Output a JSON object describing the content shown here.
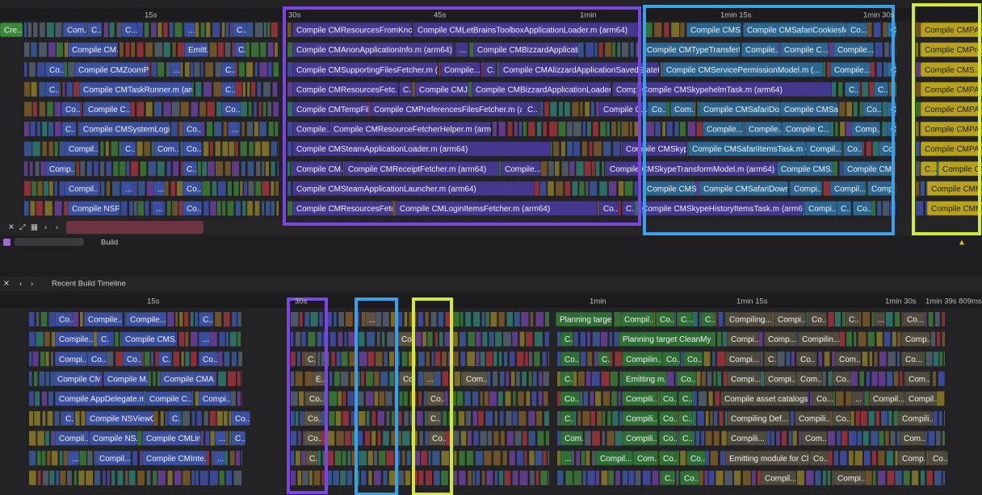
{
  "top_timeline": {
    "ruler": [
      "15s",
      "30s",
      "45s",
      "1min",
      "1min 15s",
      "1min 30s"
    ],
    "rows": [
      [
        "Cre...",
        "Com...",
        "C...",
        "C...",
        "...",
        "C...",
        "Compile CMResourcesFromKnow...",
        "Compile CMLetBrainsToolboxApplicationLoader.m (arm64)",
        "Compile CMS...",
        "Compile CMSafariCookiesMo...",
        "Co...",
        "C...",
        "Compile CMPAN..."
      ],
      [
        "Compile CM...",
        "Emitt...",
        "C...",
        "Compile CMAnonApplicationInfo.m (arm64)",
        "...",
        "Compile CMBizzardApplicati...",
        "Compile CMTypeTransferItemsTask.m (...",
        "Compile...",
        "Compile C...",
        "Compile...",
        "Compile CMProg..."
      ],
      [
        "Co...",
        "Compile CMZoomPk...",
        "...",
        "C...",
        "Compile CMSupportingFilesFetcher.m (arm64)",
        "Compile...",
        "C...",
        "Compile CMAlizzardApplicationSavedStateFetcher.m (arm64)",
        "Compile CMServicePermissionModel.m (...",
        "Compile...",
        "C...",
        "Compile CMS..."
      ],
      [
        "C...",
        "Compile CMTaskRunner.m (arm...",
        "C...",
        "Compile CMResourcesFetc...",
        "C...",
        "Compile CMJ...",
        "Compile CMBizzardApplicationLoader.m...",
        "Compil",
        "Compile CMSkypehelmTask.m (arm64)",
        "C...",
        "C...",
        "Compile CMPAN..."
      ],
      [
        "Co...",
        "Compile C...",
        "Co...",
        "Compile CMTempFil...",
        "Compile CMPreferencesFilesFetcher.m (arm...",
        "C...",
        "Compile C...",
        "Co...",
        "Com...",
        "Compile CMSafariDo...",
        "Compile CMSa...",
        "Co...",
        "C...",
        "Compile CMPAN..."
      ],
      [
        "C...",
        "Compile CMSystemLogin...",
        "Co...",
        "...",
        "Compile...",
        "Compile CMResourceFetcherHelper.m (arm64)",
        "Compile...",
        "Compile...",
        "Compile C...",
        "Comp...",
        "C...",
        "Compile CMPAN..."
      ],
      [
        "Compil...",
        "C...",
        "Com...",
        "Co...",
        "Compile CMSteamApplicationLoader.m (arm64)",
        "Compile CMSkyp...",
        "Compile CMSafariItemsTask.m (a...",
        "Compil...",
        "Co...",
        "Co",
        "Compile CMPAN..."
      ],
      [
        "Comp...",
        "C...",
        "Compile CM...",
        "Compile CMReceiptFetcher.m (arm64)",
        "Compile...",
        "Compile CMSkypeTransformModel.m (arm64)",
        "Compile CMS...",
        "Compile CM...",
        "C...",
        "Compile CM"
      ],
      [
        "Compil...",
        "...",
        "...",
        "Co...",
        "Compile CMSteamApplicationLauncher.m (arm64)",
        "Compile CMSk...",
        "Compile CMSafariDownl...",
        "Compi...",
        "Compil...",
        "Compi",
        "Compile CMM..."
      ],
      [
        "Compile NSFil...",
        "...",
        "Co...",
        "Compile CMResourcesFetc...",
        "Compile CMLoginItemsFetcher.m (arm64)",
        "Co...",
        "C...",
        "Compile CMSkypeHistoryItemsTask.m (arm64)",
        "Compi...",
        "C...",
        "Co...",
        "Compile CMMa..."
      ]
    ]
  },
  "breadcrumb": "Build",
  "bottom_panel": {
    "title": "Recent Build Timeline",
    "ruler": [
      "15s",
      "30s",
      "1min",
      "1min 15s",
      "1min 30s",
      "1min 39s 809ms"
    ],
    "rows": [
      [
        "Co...",
        "Compile...",
        "Compile...",
        "C...",
        "...",
        "Planning targe...",
        "Compil...",
        "Co...",
        "C...",
        "C...",
        "Compiling...",
        "Compi...",
        "Co...",
        "C...",
        "...",
        "Co..."
      ],
      [
        "Compile...",
        "C...",
        "Compile CMS...",
        "...",
        "Co...",
        "C...",
        "Planning target CleanMy...",
        "Compi...",
        "Comp...",
        "Compilin...",
        "Comp..."
      ],
      [
        "Compi...",
        "Co...",
        "Co...",
        "C...",
        "Co...",
        "C...",
        "Co...",
        "C...",
        "Compilin...",
        "Co...",
        "Co...",
        "Compi...",
        "C...",
        "Co...",
        "Com...",
        "Co..."
      ],
      [
        "Compile CM...",
        "Compile M...",
        "Compile CMA...",
        "E...",
        "Co...",
        "...",
        "Com...",
        "C...",
        "Emitting m...",
        "Co...",
        "Compi...",
        "Compi...",
        "Com...",
        "Co...",
        "Com..."
      ],
      [
        "Compile AppDelegate.m...",
        "Compile C...",
        "Compi...",
        "Co...",
        "Co...",
        "Co...",
        "Compili...",
        "Co...",
        "C...",
        "Compile asset catalogs",
        "Co...",
        "...",
        "Compil...",
        "Compil..."
      ],
      [
        "C...",
        "Compile NSViewC...",
        "C...",
        "Co...",
        "Co...",
        "C...",
        "C...",
        "Compili...",
        "Co...",
        "C...",
        "Compiling Def...",
        "Compili...",
        "Co...",
        "Compili..."
      ],
      [
        "Compil...",
        "Compile NS...",
        "Compile CMLin...",
        "...",
        "C...",
        "Co...",
        "Co...",
        "Com...",
        "Compili...",
        "Co...",
        "C...",
        "Compili...",
        "Com...",
        "Com..."
      ],
      [
        "...",
        "Compil...",
        "Compile CMInte...",
        "...",
        "C...",
        "...",
        "Compil...",
        "Com...",
        "Co...",
        "Co...",
        "Emitting module for Cl...",
        "Co...",
        "Comp...",
        "Co..."
      ],
      [
        "C...",
        "Co...",
        "Compil...",
        "Compi..."
      ]
    ]
  }
}
